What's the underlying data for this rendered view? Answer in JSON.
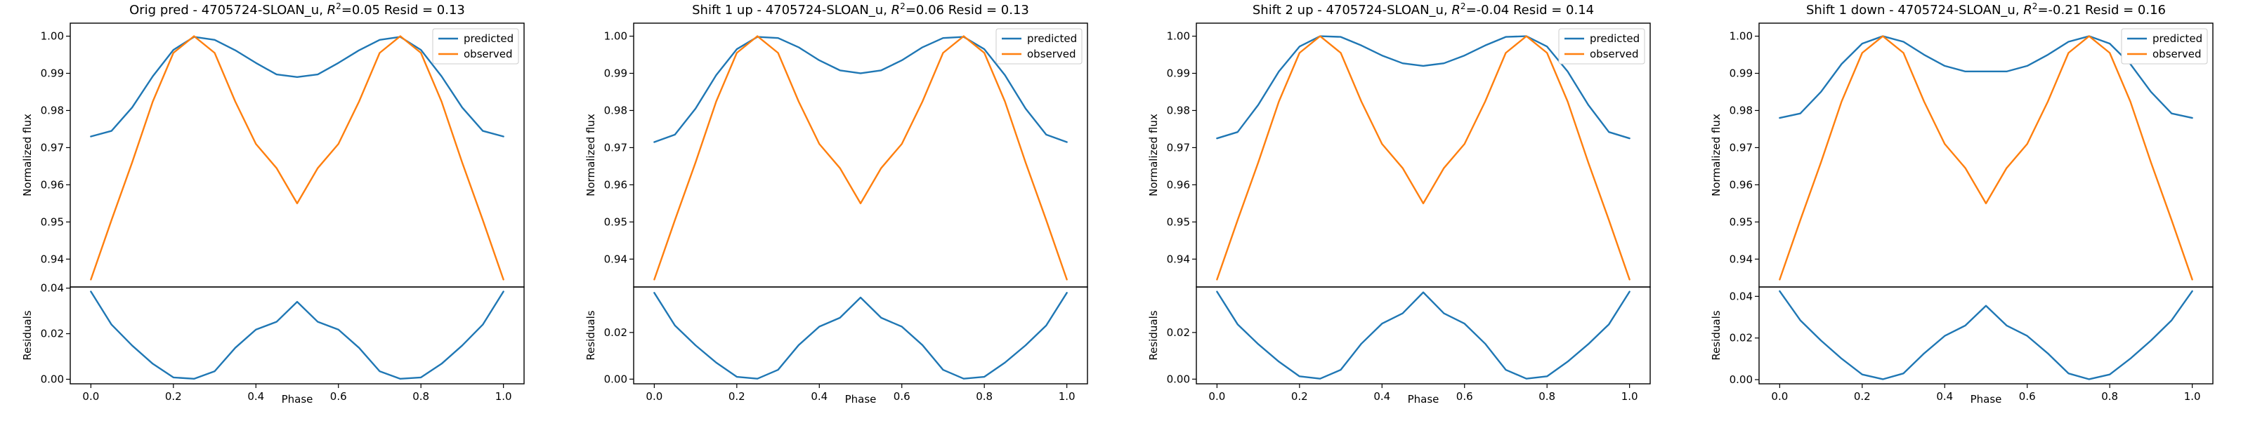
{
  "colors": {
    "predicted": "#1f77b4",
    "observed": "#ff7f0e"
  },
  "chart_data": [
    {
      "type": "line",
      "title_prefix": "Orig pred - 4705724-SLOAN_u, ",
      "title_suffix": "=0.05 Resid = 0.13",
      "xlabel": "Phase",
      "ylabel_top": "Normalized flux",
      "ylabel_bottom": "Residuals",
      "legend": [
        "predicted",
        "observed"
      ],
      "legend_position": "top-right",
      "xlim": [
        -0.05,
        1.05
      ],
      "ylim_top": [
        0.9325,
        1.0035
      ],
      "ylim_bottom": [
        -0.002,
        0.0405
      ],
      "xticks": [
        0.0,
        0.2,
        0.4,
        0.6,
        0.8,
        1.0
      ],
      "xtick_labels": [
        "0.0",
        "0.2",
        "0.4",
        "0.6",
        "0.8",
        "1.0"
      ],
      "yticks_top": [
        0.94,
        0.95,
        0.96,
        0.97,
        0.98,
        0.99,
        1.0
      ],
      "ytick_labels_top": [
        "0.94",
        "0.95",
        "0.96",
        "0.97",
        "0.98",
        "0.99",
        "1.00"
      ],
      "yticks_bottom": [
        0.0,
        0.02,
        0.04
      ],
      "ytick_labels_bottom": [
        "0.00",
        "0.02",
        "0.04"
      ],
      "x": [
        0.0,
        0.05,
        0.1,
        0.15,
        0.2,
        0.25,
        0.3,
        0.35,
        0.4,
        0.45,
        0.5,
        0.55,
        0.6,
        0.65,
        0.7,
        0.75,
        0.8,
        0.85,
        0.9,
        0.95,
        1.0
      ],
      "series": [
        {
          "name": "predicted",
          "values": [
            0.973,
            0.9745,
            0.9808,
            0.9892,
            0.9963,
            0.9998,
            0.999,
            0.9962,
            0.9928,
            0.9897,
            0.989,
            0.9897,
            0.9928,
            0.9962,
            0.999,
            0.9998,
            0.9963,
            0.9892,
            0.9808,
            0.9745,
            0.973
          ]
        },
        {
          "name": "observed",
          "values": [
            0.9345,
            0.9505,
            0.966,
            0.9824,
            0.9955,
            1.0,
            0.9955,
            0.9824,
            0.971,
            0.9645,
            0.955,
            0.9645,
            0.971,
            0.9824,
            0.9955,
            1.0,
            0.9955,
            0.9824,
            0.966,
            0.9505,
            0.9345
          ]
        },
        {
          "name": "residual",
          "values": [
            0.0385,
            0.024,
            0.0148,
            0.0068,
            0.0008,
            0.0002,
            0.0035,
            0.0138,
            0.0218,
            0.0252,
            0.034,
            0.0252,
            0.0218,
            0.0138,
            0.0035,
            0.0002,
            0.0008,
            0.0068,
            0.0148,
            0.024,
            0.0385
          ]
        }
      ]
    },
    {
      "type": "line",
      "title_prefix": "Shift 1 up - 4705724-SLOAN_u, ",
      "title_suffix": "=0.06 Resid = 0.13",
      "xlabel": "Phase",
      "ylabel_top": "Normalized flux",
      "ylabel_bottom": "Residuals",
      "legend": [
        "predicted",
        "observed"
      ],
      "legend_position": "top-right",
      "xlim": [
        -0.05,
        1.05
      ],
      "ylim_top": [
        0.9325,
        1.0035
      ],
      "ylim_bottom": [
        -0.002,
        0.0395
      ],
      "xticks": [
        0.0,
        0.2,
        0.4,
        0.6,
        0.8,
        1.0
      ],
      "xtick_labels": [
        "0.0",
        "0.2",
        "0.4",
        "0.6",
        "0.8",
        "1.0"
      ],
      "yticks_top": [
        0.94,
        0.95,
        0.96,
        0.97,
        0.98,
        0.99,
        1.0
      ],
      "ytick_labels_top": [
        "0.94",
        "0.95",
        "0.96",
        "0.97",
        "0.98",
        "0.99",
        "1.00"
      ],
      "yticks_bottom": [
        0.0,
        0.02
      ],
      "ytick_labels_bottom": [
        "0.00",
        "0.02"
      ],
      "x": [
        0.0,
        0.05,
        0.1,
        0.15,
        0.2,
        0.25,
        0.3,
        0.35,
        0.4,
        0.45,
        0.5,
        0.55,
        0.6,
        0.65,
        0.7,
        0.75,
        0.8,
        0.85,
        0.9,
        0.95,
        1.0
      ],
      "series": [
        {
          "name": "predicted",
          "values": [
            0.9715,
            0.9735,
            0.9805,
            0.9895,
            0.9965,
            0.9998,
            0.9995,
            0.997,
            0.9935,
            0.9908,
            0.99,
            0.9908,
            0.9935,
            0.997,
            0.9995,
            0.9998,
            0.9965,
            0.9895,
            0.9805,
            0.9735,
            0.9715
          ]
        },
        {
          "name": "observed",
          "values": [
            0.9345,
            0.9505,
            0.966,
            0.9824,
            0.9955,
            1.0,
            0.9955,
            0.9824,
            0.971,
            0.9645,
            0.955,
            0.9645,
            0.971,
            0.9824,
            0.9955,
            1.0,
            0.9955,
            0.9824,
            0.966,
            0.9505,
            0.9345
          ]
        },
        {
          "name": "residual",
          "values": [
            0.037,
            0.023,
            0.0145,
            0.0071,
            0.001,
            0.0002,
            0.004,
            0.0146,
            0.0225,
            0.0263,
            0.035,
            0.0263,
            0.0225,
            0.0146,
            0.004,
            0.0002,
            0.001,
            0.0071,
            0.0145,
            0.023,
            0.037
          ]
        }
      ]
    },
    {
      "type": "line",
      "title_prefix": "Shift 2 up - 4705724-SLOAN_u, ",
      "title_suffix": "=-0.04 Resid = 0.14",
      "xlabel": "Phase",
      "ylabel_top": "Normalized flux",
      "ylabel_bottom": "Residuals",
      "legend": [
        "predicted",
        "observed"
      ],
      "legend_position": "top-right",
      "xlim": [
        -0.05,
        1.05
      ],
      "ylim_top": [
        0.9325,
        1.0035
      ],
      "ylim_bottom": [
        -0.002,
        0.0395
      ],
      "xticks": [
        0.0,
        0.2,
        0.4,
        0.6,
        0.8,
        1.0
      ],
      "xtick_labels": [
        "0.0",
        "0.2",
        "0.4",
        "0.6",
        "0.8",
        "1.0"
      ],
      "yticks_top": [
        0.94,
        0.95,
        0.96,
        0.97,
        0.98,
        0.99,
        1.0
      ],
      "ytick_labels_top": [
        "0.94",
        "0.95",
        "0.96",
        "0.97",
        "0.98",
        "0.99",
        "1.00"
      ],
      "yticks_bottom": [
        0.0,
        0.02
      ],
      "ytick_labels_bottom": [
        "0.00",
        "0.02"
      ],
      "x": [
        0.0,
        0.05,
        0.1,
        0.15,
        0.2,
        0.25,
        0.3,
        0.35,
        0.4,
        0.45,
        0.5,
        0.55,
        0.6,
        0.65,
        0.7,
        0.75,
        0.8,
        0.85,
        0.9,
        0.95,
        1.0
      ],
      "series": [
        {
          "name": "predicted",
          "values": [
            0.9725,
            0.9742,
            0.9815,
            0.9905,
            0.9972,
            1.0,
            0.9998,
            0.9975,
            0.9948,
            0.9927,
            0.992,
            0.9927,
            0.9948,
            0.9975,
            0.9998,
            1.0,
            0.9972,
            0.9905,
            0.9815,
            0.9742,
            0.9725
          ]
        },
        {
          "name": "observed",
          "values": [
            0.9345,
            0.9505,
            0.966,
            0.9824,
            0.9955,
            1.0,
            0.9955,
            0.9824,
            0.971,
            0.9645,
            0.955,
            0.9645,
            0.971,
            0.9824,
            0.9955,
            1.0,
            0.9955,
            0.9824,
            0.966,
            0.9505,
            0.9345
          ]
        },
        {
          "name": "residual",
          "values": [
            0.0375,
            0.0235,
            0.015,
            0.0075,
            0.0012,
            0.0002,
            0.004,
            0.0152,
            0.0238,
            0.0282,
            0.0372,
            0.0282,
            0.0238,
            0.0152,
            0.004,
            0.0002,
            0.0012,
            0.0075,
            0.015,
            0.0235,
            0.0375
          ]
        }
      ]
    },
    {
      "type": "line",
      "title_prefix": "Shift 1 down - 4705724-SLOAN_u, ",
      "title_suffix": "=-0.21 Resid = 0.16",
      "xlabel": "Phase",
      "ylabel_top": "Normalized flux",
      "ylabel_bottom": "Residuals",
      "legend": [
        "predicted",
        "observed"
      ],
      "legend_position": "top-right",
      "xlim": [
        -0.05,
        1.05
      ],
      "ylim_top": [
        0.9325,
        1.0035
      ],
      "ylim_bottom": [
        -0.002,
        0.0445
      ],
      "xticks": [
        0.0,
        0.2,
        0.4,
        0.6,
        0.8,
        1.0
      ],
      "xtick_labels": [
        "0.0",
        "0.2",
        "0.4",
        "0.6",
        "0.8",
        "1.0"
      ],
      "yticks_top": [
        0.94,
        0.95,
        0.96,
        0.97,
        0.98,
        0.99,
        1.0
      ],
      "ytick_labels_top": [
        "0.94",
        "0.95",
        "0.96",
        "0.97",
        "0.98",
        "0.99",
        "1.00"
      ],
      "yticks_bottom": [
        0.0,
        0.02,
        0.04
      ],
      "ytick_labels_bottom": [
        "0.00",
        "0.02",
        "0.04"
      ],
      "x": [
        0.0,
        0.05,
        0.1,
        0.15,
        0.2,
        0.25,
        0.3,
        0.35,
        0.4,
        0.45,
        0.5,
        0.55,
        0.6,
        0.65,
        0.7,
        0.75,
        0.8,
        0.85,
        0.9,
        0.95,
        1.0
      ],
      "series": [
        {
          "name": "predicted",
          "values": [
            0.978,
            0.9792,
            0.985,
            0.9925,
            0.998,
            1.0,
            0.9985,
            0.995,
            0.992,
            0.9905,
            0.9905,
            0.9905,
            0.992,
            0.995,
            0.9985,
            1.0,
            0.998,
            0.9925,
            0.985,
            0.9792,
            0.978
          ]
        },
        {
          "name": "observed",
          "values": [
            0.9345,
            0.9505,
            0.966,
            0.9824,
            0.9955,
            1.0,
            0.9955,
            0.9824,
            0.971,
            0.9645,
            0.955,
            0.9645,
            0.971,
            0.9824,
            0.9955,
            1.0,
            0.9955,
            0.9824,
            0.966,
            0.9505,
            0.9345
          ]
        },
        {
          "name": "residual",
          "values": [
            0.0425,
            0.0285,
            0.0188,
            0.0101,
            0.0025,
            0.0002,
            0.003,
            0.0126,
            0.021,
            0.026,
            0.0355,
            0.026,
            0.021,
            0.0126,
            0.003,
            0.0002,
            0.0025,
            0.0101,
            0.0188,
            0.0285,
            0.0425
          ]
        }
      ]
    }
  ]
}
